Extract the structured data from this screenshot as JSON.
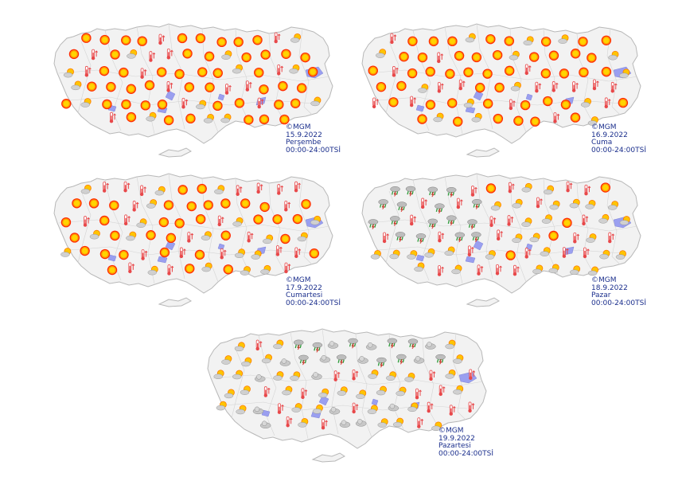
{
  "colors": {
    "land": "#f2f2f2",
    "border": "#b8b8b8",
    "lake": "#9a9ff0",
    "caption": "#1a2e8c",
    "sun_core": "#ffd400",
    "sun_ring": "#ff2a00",
    "thermo": "#e8484a",
    "cloud": "#c9c9c9",
    "rain": "#2e9c3a"
  },
  "legend_icons": [
    "sunny-icon",
    "hot-thermometer-icon",
    "partly-cloudy-icon",
    "cloudy-icon",
    "rain-showers-icon"
  ],
  "panels": [
    {
      "credit": "©MGM",
      "date": "15.9.2022",
      "day": "Perşembe",
      "period": "00:00-24:00TSİ",
      "icons": [
        "sunny",
        "hot",
        "partly-cloudy"
      ]
    },
    {
      "credit": "©MGM",
      "date": "16.9.2022",
      "day": "Cuma",
      "period": "00:00-24:00TSİ",
      "icons": [
        "sunny",
        "hot",
        "partly-cloudy"
      ]
    },
    {
      "credit": "©MGM",
      "date": "17.9.2022",
      "day": "Cumartesi",
      "period": "00:00-24:00TSİ",
      "icons": [
        "sunny",
        "hot",
        "partly-cloudy"
      ]
    },
    {
      "credit": "©MGM",
      "date": "18.9.2022",
      "day": "Pazar",
      "period": "00:00-24:00TSİ",
      "icons": [
        "rain-showers",
        "hot",
        "partly-cloudy",
        "sunny"
      ]
    },
    {
      "credit": "©MGM",
      "date": "19.9.2022",
      "day": "Pazartesi",
      "period": "00:00-24:00TSİ",
      "icons": [
        "partly-cloudy",
        "cloudy",
        "rain-showers",
        "hot"
      ]
    }
  ]
}
